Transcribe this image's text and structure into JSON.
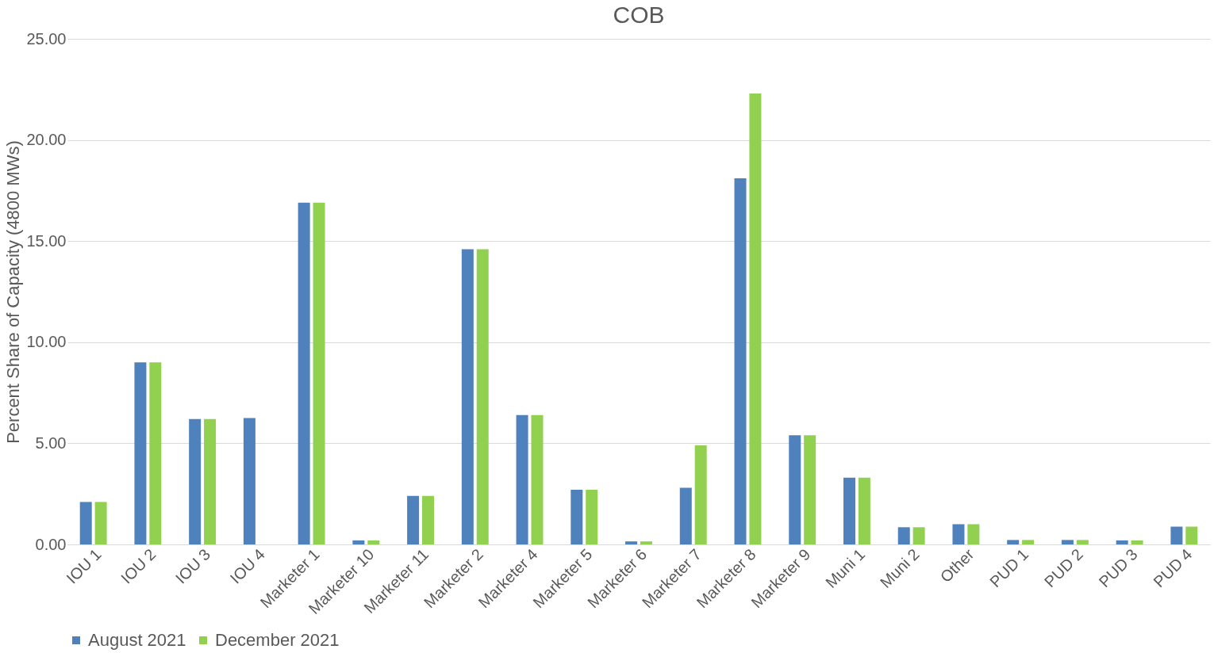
{
  "chart_data": {
    "type": "bar",
    "title": "COB",
    "ylabel": "Percent Share of Capacity (4800 MWs)",
    "categories": [
      "IOU 1",
      "IOU 2",
      "IOU 3",
      "IOU 4",
      "Marketer 1",
      "Marketer 10",
      "Marketer 11",
      "Marketer 2",
      "Marketer 4",
      "Marketer 5",
      "Marketer 6",
      "Marketer 7",
      "Marketer 8",
      "Marketer 9",
      "Muni 1",
      "Muni 2",
      "Other",
      "PUD 1",
      "PUD 2",
      "PUD 3",
      "PUD 4"
    ],
    "series": [
      {
        "name": "August 2021",
        "color": "#4f81bd",
        "values": [
          2.1,
          9.0,
          6.2,
          6.25,
          16.9,
          0.2,
          2.4,
          14.6,
          6.4,
          2.7,
          0.15,
          2.8,
          18.1,
          5.4,
          3.3,
          0.85,
          1.0,
          0.22,
          0.22,
          0.2,
          0.88
        ]
      },
      {
        "name": "December 2021",
        "color": "#92d050",
        "values": [
          2.1,
          9.0,
          6.2,
          null,
          16.9,
          0.2,
          2.4,
          14.6,
          6.4,
          2.7,
          0.15,
          4.9,
          22.3,
          5.4,
          3.3,
          0.85,
          1.0,
          0.22,
          0.22,
          0.2,
          0.88
        ]
      }
    ],
    "ylim": [
      0,
      25
    ],
    "yticks": [
      {
        "value": 0,
        "label": "0.00"
      },
      {
        "value": 5,
        "label": "5.00"
      },
      {
        "value": 10,
        "label": "10.00"
      },
      {
        "value": 15,
        "label": "15.00"
      },
      {
        "value": 20,
        "label": "20.00"
      },
      {
        "value": 25,
        "label": "25.00"
      }
    ],
    "grid": "y",
    "legend": "bottom"
  }
}
